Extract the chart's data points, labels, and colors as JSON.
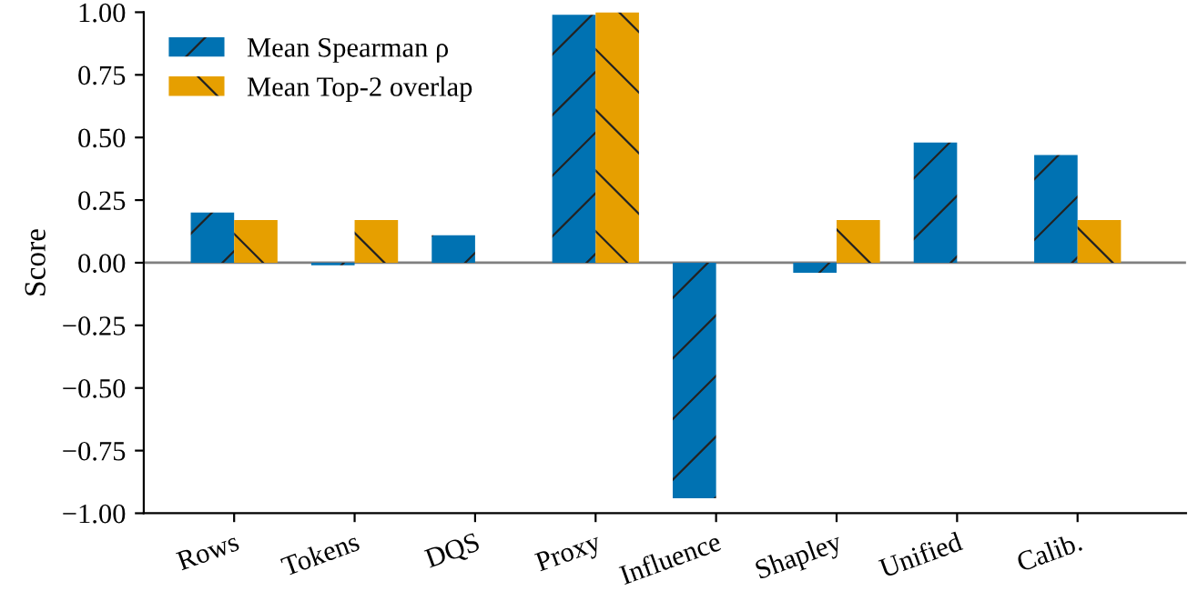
{
  "chart_data": {
    "type": "bar",
    "ylabel": "Score",
    "categories": [
      "Rows",
      "Tokens",
      "DQS",
      "Proxy",
      "Influence",
      "Shapley",
      "Unified",
      "Calib."
    ],
    "series": [
      {
        "name": "Mean Spearman ρ",
        "color": "#0072b2",
        "values": [
          0.2,
          -0.01,
          0.11,
          0.99,
          -0.94,
          -0.04,
          0.48,
          0.43
        ]
      },
      {
        "name": "Mean Top-2 overlap",
        "color": "#e69f00",
        "values": [
          0.17,
          0.17,
          0,
          1.0,
          0,
          0.17,
          0,
          0.17
        ]
      }
    ],
    "ylim": [
      -1.0,
      1.0
    ],
    "yticks": [
      {
        "value": -1.0,
        "label": "−1.00"
      },
      {
        "value": -0.75,
        "label": "−0.75"
      },
      {
        "value": -0.5,
        "label": "−0.50"
      },
      {
        "value": -0.25,
        "label": "−0.25"
      },
      {
        "value": 0,
        "label": "0.00"
      },
      {
        "value": 0.25,
        "label": "0.25"
      },
      {
        "value": 0.5,
        "label": "0.50"
      },
      {
        "value": 0.75,
        "label": "0.75"
      },
      {
        "value": 1.0,
        "label": "1.00"
      }
    ],
    "ref_lines": [
      {
        "axis": "y",
        "value": 0,
        "color": "#808080"
      }
    ],
    "grid": false,
    "legend": "top left"
  }
}
